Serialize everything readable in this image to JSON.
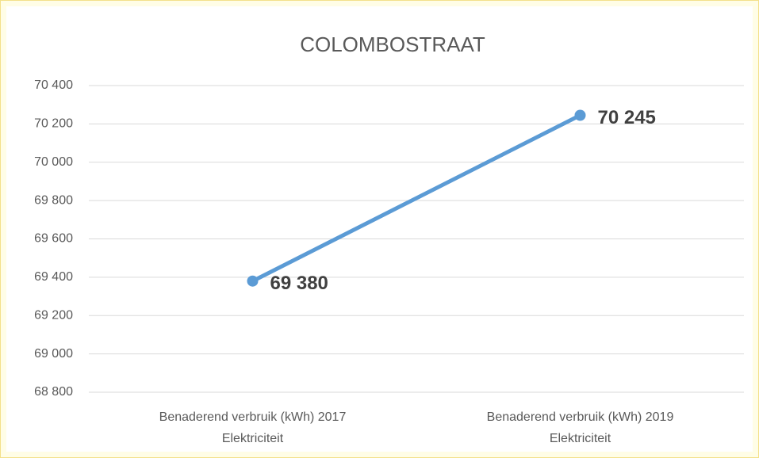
{
  "chart_data": {
    "type": "line",
    "title": "COLOMBOSTRAAT",
    "categories": [
      [
        "Benaderend verbruik (kWh) 2017",
        "Elektriciteit"
      ],
      [
        "Benaderend verbruik (kWh) 2019",
        "Elektriciteit"
      ]
    ],
    "series": [
      {
        "color": "#5b9bd5",
        "values": [
          69380,
          70245
        ],
        "value_labels": [
          "69 380",
          "70 245"
        ]
      }
    ],
    "ylim": [
      68800,
      70400
    ],
    "yticks": [
      {
        "value": 68800,
        "label": "68 800"
      },
      {
        "value": 69000,
        "label": "69 000"
      },
      {
        "value": 69200,
        "label": "69 200"
      },
      {
        "value": 69400,
        "label": "69 400"
      },
      {
        "value": 69600,
        "label": "69 600"
      },
      {
        "value": 69800,
        "label": "69 800"
      },
      {
        "value": 70000,
        "label": "70 000"
      },
      {
        "value": 70200,
        "label": "70 200"
      },
      {
        "value": 70400,
        "label": "70 400"
      }
    ],
    "grid": true
  }
}
